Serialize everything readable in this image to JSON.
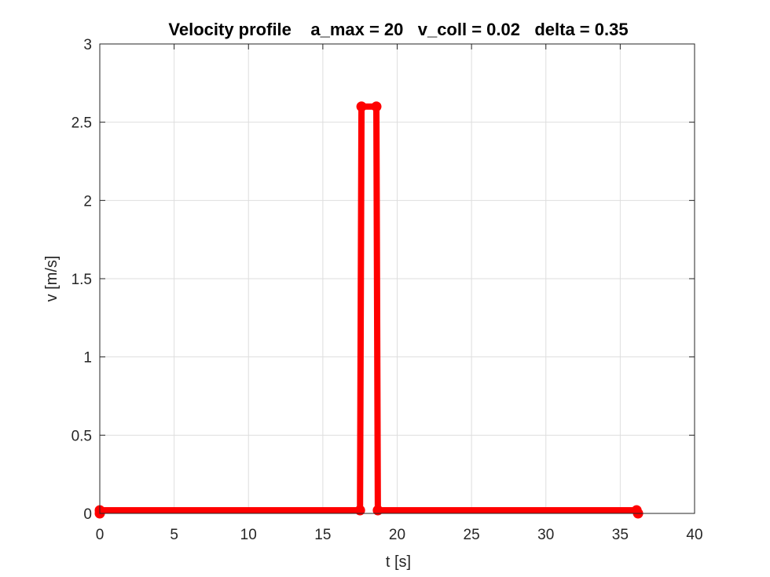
{
  "chart_data": {
    "type": "line",
    "title": "Velocity profile    a_max = 20   v_coll = 0.02   delta = 0.35",
    "xlabel": "t [s]",
    "ylabel": "v [m/s]",
    "xlim": [
      0,
      40
    ],
    "ylim": [
      0,
      3
    ],
    "xticks": [
      0,
      5,
      10,
      15,
      20,
      25,
      30,
      35,
      40
    ],
    "yticks": [
      0,
      0.5,
      1,
      1.5,
      2,
      2.5,
      3
    ],
    "xtick_labels": [
      "0",
      "5",
      "10",
      "15",
      "20",
      "25",
      "30",
      "35",
      "40"
    ],
    "ytick_labels": [
      "0",
      "0.5",
      "1",
      "1.5",
      "2",
      "2.5",
      "3"
    ],
    "grid": true,
    "series": [
      {
        "color": "#ff0000",
        "marker": "filled-circle",
        "x": [
          0,
          0,
          17.5,
          17.6,
          18.6,
          18.7,
          36.1,
          36.2
        ],
        "y": [
          0,
          0.02,
          0.02,
          2.6,
          2.6,
          0.02,
          0.02,
          0
        ]
      }
    ]
  }
}
